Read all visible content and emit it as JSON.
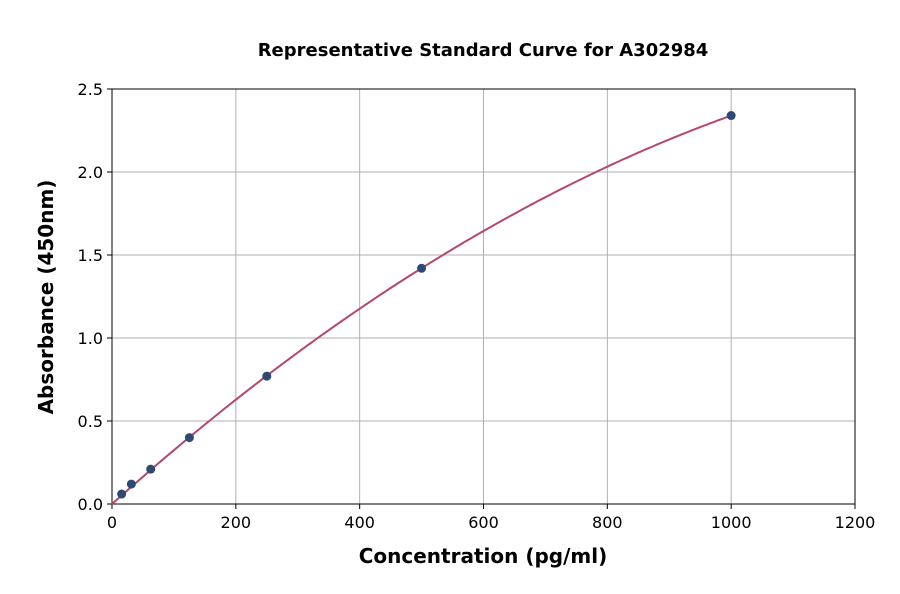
{
  "chart_data": {
    "type": "scatter",
    "title": "Representative Standard Curve for A302984",
    "xlabel": "Concentration (pg/ml)",
    "ylabel": "Absorbance (450nm)",
    "xlim": [
      0,
      1200
    ],
    "ylim": [
      0,
      2.5
    ],
    "xticks": [
      "0",
      "200",
      "400",
      "600",
      "800",
      "1000",
      "1200"
    ],
    "yticks": [
      "0.0",
      "0.5",
      "1.0",
      "1.5",
      "2.0",
      "2.5"
    ],
    "grid": true,
    "series": [
      {
        "x": [
          15.6,
          31.25,
          62.5,
          125,
          250,
          500,
          1000
        ],
        "y": [
          0.06,
          0.12,
          0.21,
          0.4,
          0.77,
          1.42,
          2.34
        ]
      }
    ],
    "fit_curve": {
      "color": "#b5476b",
      "x_range": [
        0,
        1000
      ]
    },
    "point_color": "#2e4a74"
  }
}
